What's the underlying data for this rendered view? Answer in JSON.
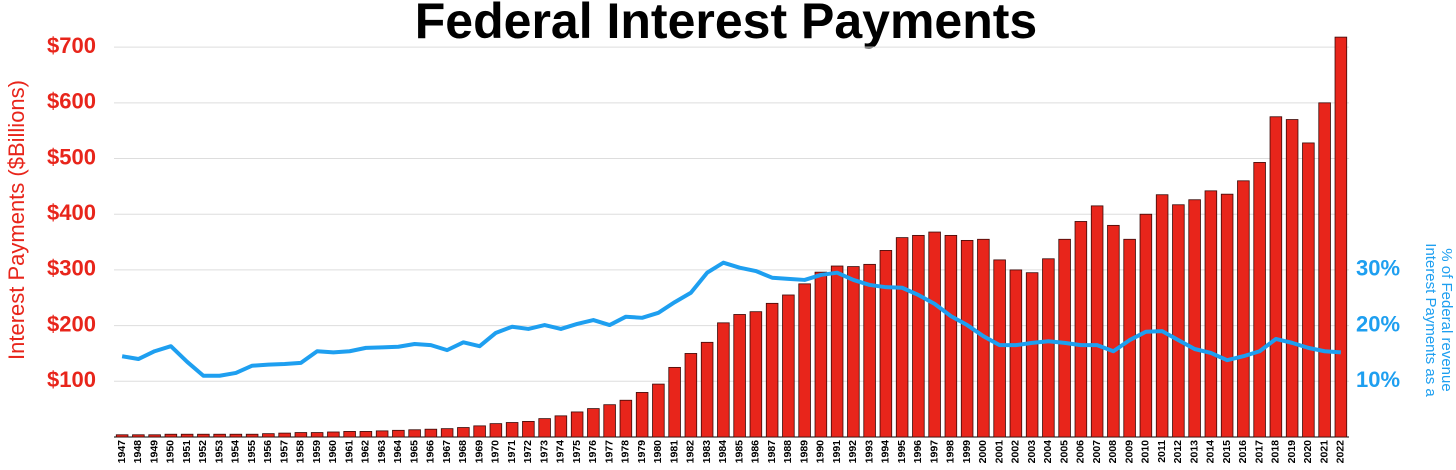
{
  "chart_data": {
    "type": "bar-line",
    "title": "Federal Interest Payments",
    "ylabel": "Interest Payments ($Billions)",
    "y2label": [
      "Interest Payments as a",
      "% of Federal revenue"
    ],
    "categories": [
      "1947",
      "1948",
      "1949",
      "1950",
      "1951",
      "1952",
      "1953",
      "1954",
      "1955",
      "1956",
      "1957",
      "1958",
      "1959",
      "1960",
      "1961",
      "1962",
      "1963",
      "1964",
      "1965",
      "1966",
      "1967",
      "1968",
      "1969",
      "1970",
      "1971",
      "1972",
      "1973",
      "1974",
      "1975",
      "1976",
      "1977",
      "1978",
      "1979",
      "1980",
      "1981",
      "1982",
      "1983",
      "1984",
      "1985",
      "1986",
      "1987",
      "1988",
      "1989",
      "1990",
      "1991",
      "1992",
      "1993",
      "1994",
      "1995",
      "1996",
      "1997",
      "1998",
      "1999",
      "2000",
      "2001",
      "2002",
      "2003",
      "2004",
      "2005",
      "2006",
      "2007",
      "2008",
      "2009",
      "2010",
      "2011",
      "2012",
      "2013",
      "2014",
      "2015",
      "2016",
      "2017",
      "2018",
      "2019",
      "2020",
      "2021",
      "2022"
    ],
    "series": [
      {
        "type": "bar",
        "color": "#e8251b",
        "values": [
          4,
          4,
          4,
          5,
          5,
          5,
          5,
          5,
          5,
          6,
          7,
          8,
          8,
          9,
          10,
          10,
          11,
          12,
          13,
          14,
          15,
          17,
          20,
          24,
          26,
          28,
          33,
          38,
          45,
          51,
          58,
          66,
          80,
          95,
          125,
          150,
          170,
          205,
          220,
          225,
          240,
          255,
          275,
          296,
          307,
          306,
          310,
          335,
          358,
          362,
          368,
          362,
          353,
          355,
          318,
          300,
          295,
          320,
          355,
          387,
          415,
          380,
          355,
          400,
          435,
          417,
          426,
          442,
          436,
          460,
          493,
          575,
          570,
          528,
          600,
          718
        ]
      },
      {
        "type": "line",
        "axis": "y2",
        "color": "#1e9ff0",
        "values": [
          14.5,
          14,
          15.4,
          16.3,
          13.5,
          11,
          11,
          11.5,
          12.8,
          13,
          13.1,
          13.3,
          15.4,
          15.2,
          15.4,
          16,
          16.1,
          16.2,
          16.7,
          16.5,
          15.6,
          17,
          16.3,
          18.7,
          19.8,
          19.4,
          20.1,
          19.4,
          20.3,
          21,
          20.1,
          21.6,
          21.4,
          22.3,
          24.2,
          25.9,
          29.5,
          31.3,
          30.4,
          29.8,
          28.6,
          28.4,
          28.2,
          29.1,
          29.5,
          28.2,
          27.3,
          26.9,
          26.8,
          25.5,
          23.9,
          21.7,
          20.1,
          18.1,
          16.5,
          16.5,
          16.9,
          17.2,
          16.9,
          16.5,
          16.5,
          15.4,
          17.4,
          18.9,
          19,
          17.4,
          15.8,
          15.1,
          13.8,
          14.5,
          15.4,
          17.6,
          16.9,
          16,
          15.4,
          15.2
        ]
      }
    ],
    "ylim": [
      0,
      720
    ],
    "yticks": [
      {
        "value": 100,
        "label": "$100"
      },
      {
        "value": 200,
        "label": "$200"
      },
      {
        "value": 300,
        "label": "$300"
      },
      {
        "value": 400,
        "label": "$400"
      },
      {
        "value": 500,
        "label": "$500"
      },
      {
        "value": 600,
        "label": "$600"
      },
      {
        "value": 700,
        "label": "$700"
      }
    ],
    "y2lim": [
      0,
      72
    ],
    "y2ticks": [
      {
        "value": 10,
        "label": "10%"
      },
      {
        "value": 20,
        "label": "20%"
      },
      {
        "value": 30,
        "label": "30%"
      }
    ],
    "grid": true,
    "ylabel_color": "#e8251b",
    "y2label_color": "#1e9ff0"
  }
}
